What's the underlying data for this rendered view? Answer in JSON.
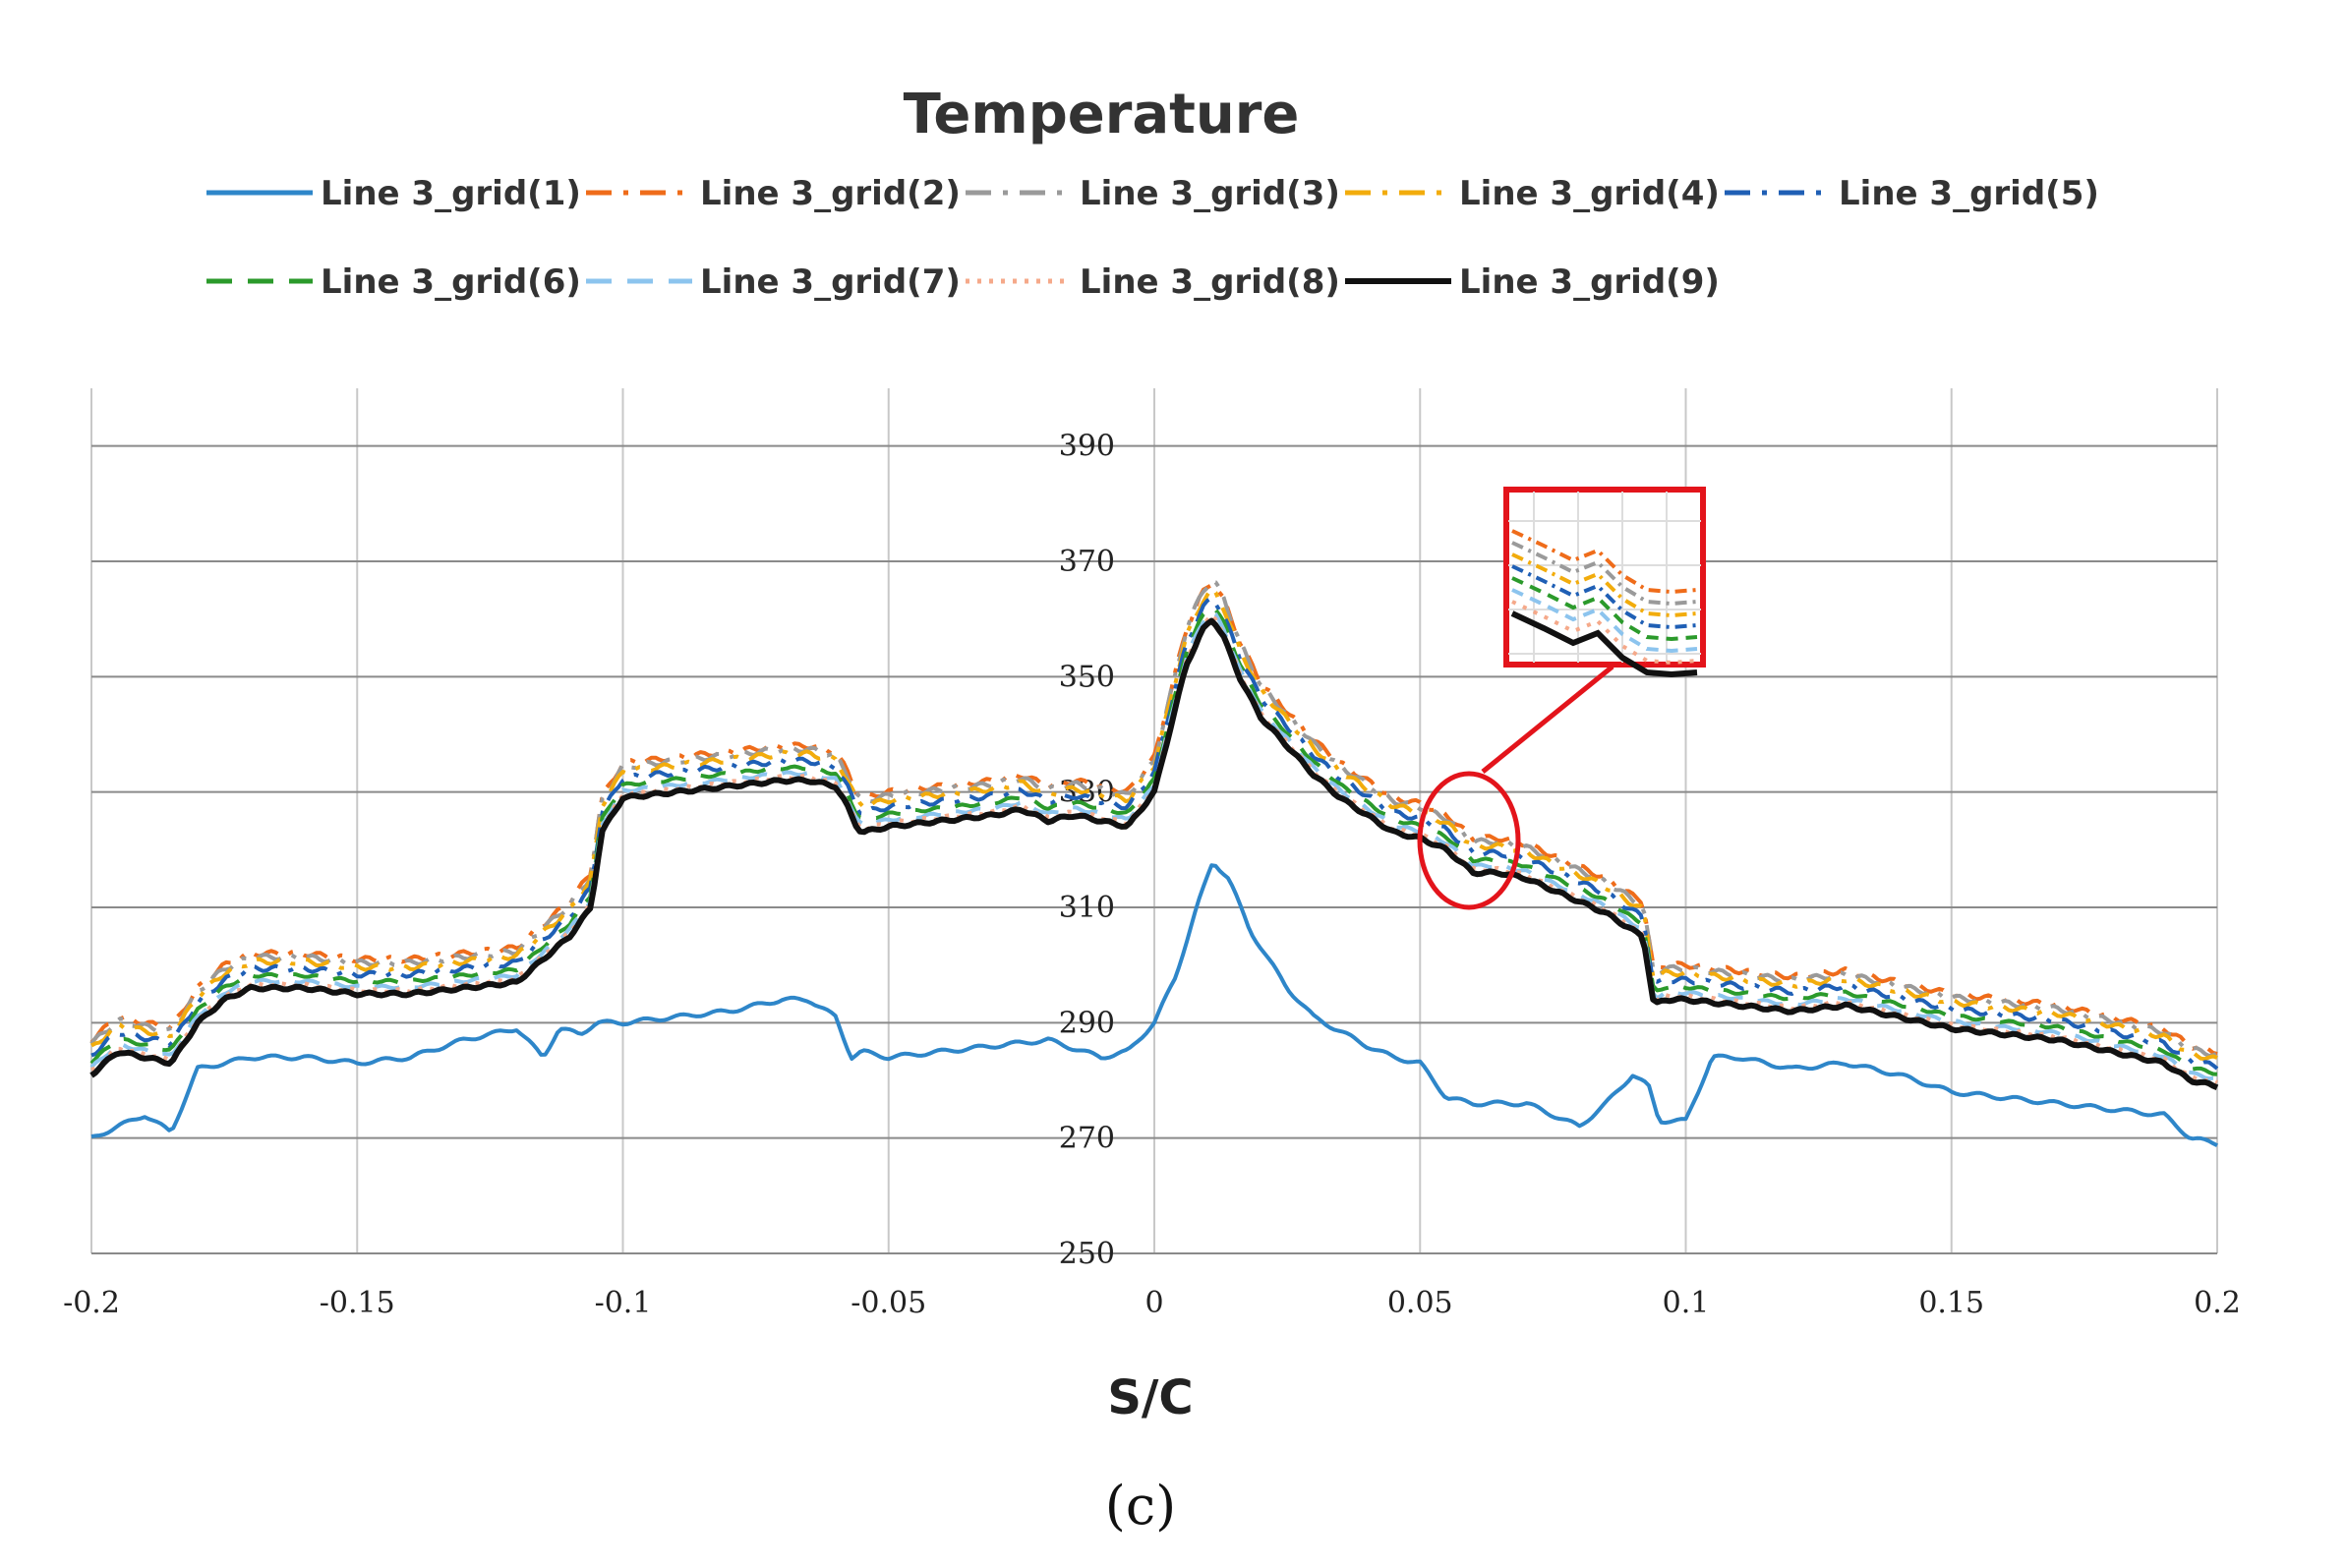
{
  "chart_data": {
    "type": "line",
    "title": "Temperature",
    "xlabel": "S/C",
    "ylabel": "",
    "caption": "(c)",
    "xlim": [
      -0.2,
      0.2
    ],
    "ylim": [
      250,
      400
    ],
    "xticks": [
      "-0.2",
      "-0.15",
      "-0.1",
      "-0.05",
      "0",
      "0.05",
      "0.1",
      "0.15",
      "0.2"
    ],
    "yticks": [
      "250",
      "270",
      "290",
      "310",
      "330",
      "350",
      "370",
      "390"
    ],
    "grid": true,
    "legend_position": "top",
    "inset": "zoomed view of the region near S/C = 0.06",
    "series": [
      {
        "name": "Line 3_grid(1)",
        "color": "#2e86c9",
        "dash": "solid",
        "offset": -34.6,
        "peak_extra": -9.0
      },
      {
        "name": "Line 3_grid(2)",
        "color": "#ef6c1a",
        "dash": "dashdot",
        "offset": 6.0,
        "peak_extra": 0.5
      },
      {
        "name": "Line 3_grid(3)",
        "color": "#9a9a9a",
        "dash": "dashdot",
        "offset": 5.4,
        "peak_extra": 1.5
      },
      {
        "name": "Line 3_grid(4)",
        "color": "#f2ac0c",
        "dash": "dashdot",
        "offset": 4.6,
        "peak_extra": 0.5
      },
      {
        "name": "Line 3_grid(5)",
        "color": "#1f5fb5",
        "dash": "dashdot",
        "offset": 3.4,
        "peak_extra": 0.4
      },
      {
        "name": "Line 3_grid(6)",
        "color": "#2b9a2b",
        "dash": "dashed",
        "offset": 2.2,
        "peak_extra": 0.3
      },
      {
        "name": "Line 3_grid(7)",
        "color": "#8cc4ee",
        "dash": "dashed",
        "offset": 1.2,
        "peak_extra": 0.2
      },
      {
        "name": "Line 3_grid(8)",
        "color": "#f5a98a",
        "dash": "dotted",
        "offset": 0.6,
        "peak_extra": 0.1
      },
      {
        "name": "Line 3_grid(9)",
        "color": "#111111",
        "dash": "solid",
        "offset": 0.0,
        "peak_extra": 0.0
      }
    ],
    "base_profile_x": [
      -0.2,
      -0.195,
      -0.19,
      -0.185,
      -0.18,
      -0.175,
      -0.17,
      -0.16,
      -0.15,
      -0.14,
      -0.13,
      -0.12,
      -0.115,
      -0.11,
      -0.106,
      -0.104,
      -0.1,
      -0.09,
      -0.08,
      -0.07,
      -0.065,
      -0.06,
      -0.058,
      -0.056,
      -0.055,
      -0.05,
      -0.04,
      -0.03,
      -0.025,
      -0.02,
      -0.015,
      -0.01,
      -0.005,
      0,
      0.003,
      0.006,
      0.009,
      0.011,
      0.013,
      0.016,
      0.02,
      0.025,
      0.03,
      0.035,
      0.04,
      0.045,
      0.05,
      0.055,
      0.06,
      0.065,
      0.07,
      0.075,
      0.08,
      0.085,
      0.09,
      0.092,
      0.094,
      0.096,
      0.1,
      0.11,
      0.12,
      0.13,
      0.14,
      0.15,
      0.16,
      0.17,
      0.18,
      0.185,
      0.19,
      0.195,
      0.2
    ],
    "base_profile_y": [
      281,
      285,
      284,
      283,
      290,
      294,
      296,
      296,
      295,
      295,
      296,
      297,
      301,
      305,
      310,
      323,
      329,
      330,
      331,
      332,
      332,
      331,
      328,
      324,
      323,
      324,
      325,
      326,
      327,
      325,
      326,
      325,
      324,
      330,
      341,
      352,
      358,
      360,
      357,
      350,
      343,
      338,
      333,
      329,
      326,
      323,
      322,
      320,
      316,
      316,
      315,
      313,
      311,
      309,
      306,
      305,
      293,
      294,
      294,
      293,
      292,
      293,
      291,
      289,
      288,
      287,
      285,
      284,
      283,
      280,
      279
    ],
    "grid1_profile_x": [
      -0.2,
      -0.19,
      -0.185,
      -0.18,
      -0.175,
      -0.17,
      -0.16,
      -0.15,
      -0.14,
      -0.13,
      -0.12,
      -0.115,
      -0.112,
      -0.108,
      -0.105,
      -0.1,
      -0.09,
      -0.08,
      -0.07,
      -0.065,
      -0.06,
      -0.057,
      -0.055,
      -0.05,
      -0.04,
      -0.03,
      -0.02,
      -0.01,
      -0.005,
      0,
      0.004,
      0.008,
      0.011,
      0.014,
      0.018,
      0.025,
      0.03,
      0.04,
      0.045,
      0.05,
      0.055,
      0.06,
      0.065,
      0.07,
      0.075,
      0.08,
      0.085,
      0.09,
      0.093,
      0.095,
      0.1,
      0.105,
      0.11,
      0.12,
      0.13,
      0.14,
      0.15,
      0.16,
      0.17,
      0.18,
      0.19,
      0.195,
      0.2
    ],
    "grid1_profile_y": [
      270,
      274,
      271,
      282,
      283,
      284,
      284,
      283,
      284,
      287,
      289,
      284,
      289,
      288,
      290,
      290,
      291,
      292,
      294,
      294,
      291,
      284,
      285,
      284,
      285,
      286,
      287,
      284,
      285,
      290,
      298,
      310,
      318,
      315,
      306,
      296,
      291,
      286,
      284,
      283,
      277,
      276,
      276,
      276,
      274,
      272,
      276,
      281,
      279,
      273,
      273,
      284,
      284,
      282,
      283,
      281,
      278,
      277,
      276,
      275,
      274,
      270,
      269
    ]
  }
}
